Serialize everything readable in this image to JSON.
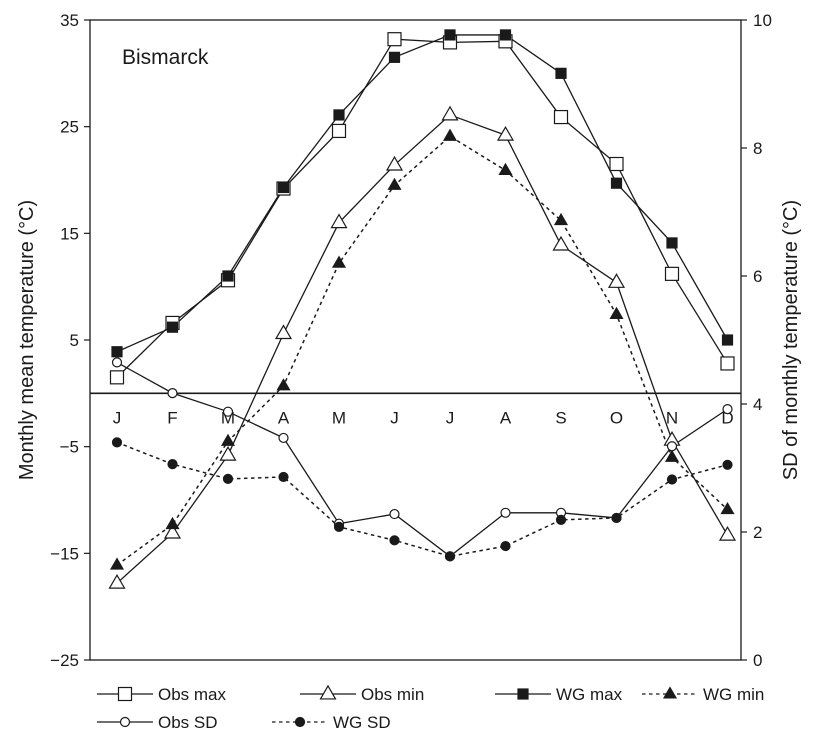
{
  "chart_data": {
    "type": "line",
    "title": "Bismarck",
    "categories": [
      "J",
      "F",
      "M",
      "A",
      "M",
      "J",
      "J",
      "A",
      "S",
      "O",
      "N",
      "D"
    ],
    "y_left": {
      "label": "Monthly mean temperature (°C)",
      "range": [
        -25,
        35
      ],
      "ticks": [
        -25,
        -15,
        -5,
        5,
        15,
        25,
        35
      ],
      "tick_labels": [
        "−25",
        "−15",
        "−5",
        "5",
        "15",
        "25",
        "35"
      ]
    },
    "y_right": {
      "label": "SD of monthly temperature (°C)",
      "range": [
        0,
        10
      ],
      "ticks": [
        0,
        2,
        4,
        6,
        8,
        10
      ],
      "tick_labels": [
        "0",
        "2",
        "4",
        "6",
        "8",
        "10"
      ]
    },
    "zero_line_value": 0,
    "grid": false,
    "legend_position": "bottom",
    "series": [
      {
        "name": "Obs max",
        "axis": "left",
        "marker": "open-square",
        "line": "solid",
        "color": "#1a1a1a",
        "values": [
          1.5,
          6.6,
          10.6,
          19.2,
          24.6,
          33.2,
          32.9,
          33.0,
          25.9,
          21.5,
          11.2,
          2.8
        ]
      },
      {
        "name": "Obs min",
        "axis": "left",
        "marker": "open-triangle",
        "line": "solid",
        "color": "#1a1a1a",
        "values": [
          -17.8,
          -13.1,
          -5.8,
          5.6,
          16.0,
          21.4,
          26.1,
          24.2,
          13.9,
          10.4,
          -4.4,
          -13.3
        ]
      },
      {
        "name": "WG max",
        "axis": "left",
        "marker": "filled-square",
        "line": "solid",
        "color": "#1a1a1a",
        "values": [
          3.9,
          6.2,
          11.0,
          19.3,
          26.1,
          31.5,
          33.6,
          33.6,
          30.0,
          19.7,
          14.1,
          5.0
        ]
      },
      {
        "name": "WG min",
        "axis": "left",
        "marker": "filled-triangle",
        "line": "dotted",
        "color": "#1a1a1a",
        "values": [
          -16.1,
          -12.3,
          -4.5,
          0.7,
          12.2,
          19.5,
          24.1,
          20.9,
          16.2,
          7.4,
          -6.0,
          -10.9
        ]
      },
      {
        "name": "Obs SD",
        "axis": "right",
        "marker": "open-circle",
        "line": "solid",
        "color": "#1a1a1a",
        "values": [
          4.65,
          4.17,
          3.88,
          3.47,
          2.13,
          2.28,
          1.62,
          2.3,
          2.3,
          2.22,
          3.34,
          3.92
        ]
      },
      {
        "name": "WG SD",
        "axis": "right",
        "marker": "filled-circle",
        "line": "dotted",
        "color": "#1a1a1a",
        "values": [
          3.4,
          3.06,
          2.83,
          2.86,
          2.08,
          1.87,
          1.62,
          1.78,
          2.19,
          2.22,
          2.82,
          3.05
        ]
      }
    ]
  }
}
